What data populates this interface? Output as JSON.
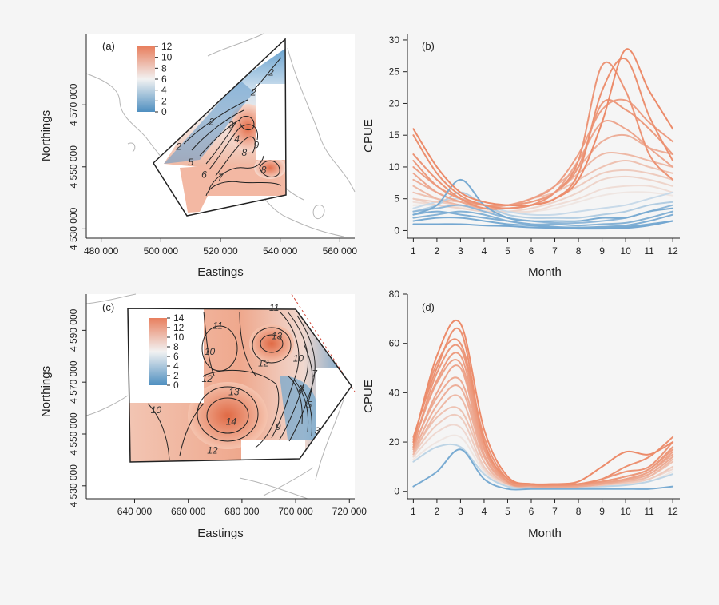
{
  "chart_data": [
    {
      "id": "a",
      "type": "heatmap",
      "panel_label": "(a)",
      "xlabel": "Eastings",
      "ylabel": "Northings",
      "xlim": [
        475000,
        565000
      ],
      "ylim": [
        4527000,
        4593000
      ],
      "xticks": [
        {
          "v": 480000,
          "label": "480 000"
        },
        {
          "v": 500000,
          "label": "500 000"
        },
        {
          "v": 520000,
          "label": "520 000"
        },
        {
          "v": 540000,
          "label": "540 000"
        },
        {
          "v": 560000,
          "label": "560 000"
        }
      ],
      "yticks": [
        {
          "v": 4530000,
          "label": "4 530 000"
        },
        {
          "v": 4550000,
          "label": "4 550 000"
        },
        {
          "v": 4570000,
          "label": "4 570 000"
        }
      ],
      "colorbar": {
        "min": 0,
        "max": 12,
        "ticks": [
          0,
          2,
          4,
          6,
          8,
          10,
          12
        ]
      },
      "colors": {
        "low": "#4f8fc0",
        "mid": "#f2f2f2",
        "high": "#e87f5e"
      },
      "contour_labels": [
        {
          "text": "2",
          "x": 506000,
          "y": 4555500
        },
        {
          "text": "2",
          "x": 517000,
          "y": 4563500
        },
        {
          "text": "3",
          "x": 523500,
          "y": 4562500
        },
        {
          "text": "4",
          "x": 525500,
          "y": 4558000
        },
        {
          "text": "5",
          "x": 510000,
          "y": 4550500
        },
        {
          "text": "6",
          "x": 514500,
          "y": 4546500
        },
        {
          "text": "7",
          "x": 520000,
          "y": 4545500
        },
        {
          "text": "8",
          "x": 528000,
          "y": 4553500
        },
        {
          "text": "9",
          "x": 532000,
          "y": 4556000
        },
        {
          "text": "8",
          "x": 534500,
          "y": 4548000
        },
        {
          "text": "2",
          "x": 531000,
          "y": 4573000
        },
        {
          "text": "2",
          "x": 537000,
          "y": 4579500
        }
      ]
    },
    {
      "id": "b",
      "type": "line",
      "panel_label": "(b)",
      "xlabel": "Month",
      "ylabel": "CPUE",
      "xlim": [
        0.75,
        12.3
      ],
      "ylim": [
        -1.2,
        31
      ],
      "xticks": [
        1,
        2,
        3,
        4,
        5,
        6,
        7,
        8,
        9,
        10,
        11,
        12
      ],
      "yticks": [
        0,
        5,
        10,
        15,
        20,
        25,
        30
      ],
      "x": [
        1,
        2,
        3,
        4,
        5,
        6,
        7,
        8,
        9,
        10,
        11,
        12
      ],
      "series": [
        {
          "values": [
            16,
            10,
            6,
            4.5,
            4,
            4,
            5,
            8,
            17,
            28.5,
            22,
            16
          ],
          "strength": 1.0
        },
        {
          "values": [
            15,
            9,
            5.5,
            4,
            3.5,
            4,
            5,
            9,
            22,
            27,
            18,
            11
          ],
          "strength": 0.95
        },
        {
          "values": [
            12,
            8,
            5,
            3.5,
            3.5,
            4,
            6,
            11,
            26,
            22,
            12,
            8
          ],
          "strength": 0.9
        },
        {
          "values": [
            11,
            7,
            5,
            4,
            4,
            4.5,
            6,
            10,
            20,
            19,
            16,
            12
          ],
          "strength": 0.85
        },
        {
          "values": [
            10,
            7,
            5,
            4,
            4,
            5,
            7,
            12,
            19,
            20.5,
            17,
            14
          ],
          "strength": 0.8
        },
        {
          "values": [
            9,
            6,
            4.5,
            3.5,
            3.5,
            4,
            6,
            11,
            17,
            16,
            13,
            10
          ],
          "strength": 0.7
        },
        {
          "values": [
            8,
            6,
            4.5,
            4,
            4,
            5,
            7,
            10,
            14,
            15,
            13,
            12
          ],
          "strength": 0.6
        },
        {
          "values": [
            7,
            5,
            4,
            3.5,
            4,
            4.5,
            6,
            9,
            12,
            12,
            11,
            10
          ],
          "strength": 0.5
        },
        {
          "values": [
            6,
            5,
            4.5,
            4,
            4,
            5,
            6,
            8,
            10,
            11,
            10,
            9
          ],
          "strength": 0.4
        },
        {
          "values": [
            5,
            4.5,
            4,
            3.5,
            3.5,
            4,
            5,
            7,
            9,
            9.5,
            9,
            8
          ],
          "strength": 0.3
        },
        {
          "values": [
            5,
            4,
            3.5,
            3,
            3,
            3.5,
            4.5,
            6,
            8,
            8.5,
            8,
            7
          ],
          "strength": 0.2
        },
        {
          "values": [
            4.5,
            4,
            3.5,
            3,
            3,
            3,
            4,
            5,
            6.5,
            7,
            7,
            6
          ],
          "strength": 0.1
        },
        {
          "values": [
            4,
            4,
            3.8,
            3.2,
            3,
            3,
            3.5,
            4.5,
            5.5,
            6,
            6,
            5.5
          ],
          "strength": 0.0
        },
        {
          "values": [
            3.5,
            4.5,
            5,
            4,
            3,
            2.5,
            2.5,
            3,
            3.5,
            4,
            5,
            6
          ],
          "strength": -0.2
        },
        {
          "values": [
            3,
            4,
            6,
            4,
            2.5,
            2,
            2,
            2,
            2.5,
            3,
            4,
            4.5
          ],
          "strength": -0.4
        },
        {
          "values": [
            2.5,
            4,
            8,
            4,
            2,
            1.5,
            1.5,
            1.5,
            2,
            2,
            3,
            3.5
          ],
          "strength": -0.9
        },
        {
          "values": [
            3,
            3.5,
            4,
            3,
            2,
            1.5,
            1.2,
            1.2,
            1.5,
            2,
            3,
            4
          ],
          "strength": -0.7
        },
        {
          "values": [
            2,
            2.5,
            3,
            2.5,
            1.5,
            1,
            1,
            0.8,
            1,
            1.2,
            2,
            3
          ],
          "strength": -0.8
        },
        {
          "values": [
            2.5,
            3,
            2.5,
            2,
            1.5,
            1,
            0.6,
            0.5,
            0.6,
            0.8,
            1.5,
            2.5
          ],
          "strength": -0.85
        },
        {
          "values": [
            1.5,
            2,
            2,
            1.5,
            1,
            0.8,
            0.5,
            0.4,
            0.5,
            0.6,
            1,
            1.5
          ],
          "strength": -0.9
        },
        {
          "values": [
            1,
            1,
            1,
            0.8,
            0.7,
            0.5,
            0.4,
            0.3,
            0.3,
            0.4,
            0.8,
            1.5
          ],
          "strength": -0.95
        }
      ]
    },
    {
      "id": "c",
      "type": "heatmap",
      "panel_label": "(c)",
      "xlabel": "Eastings",
      "ylabel": "Northings",
      "xlim": [
        622000,
        722000
      ],
      "ylim": [
        4525000,
        4604000
      ],
      "xticks": [
        {
          "v": 640000,
          "label": "640 000"
        },
        {
          "v": 660000,
          "label": "660 000"
        },
        {
          "v": 680000,
          "label": "680 000"
        },
        {
          "v": 700000,
          "label": "700 000"
        },
        {
          "v": 720000,
          "label": "720 000"
        }
      ],
      "yticks": [
        {
          "v": 4530000,
          "label": "4 530 000"
        },
        {
          "v": 4550000,
          "label": "4 550 000"
        },
        {
          "v": 4570000,
          "label": "4 570 000"
        },
        {
          "v": 4590000,
          "label": "4 590 000"
        }
      ],
      "colorbar": {
        "min": 0,
        "max": 14,
        "ticks": [
          0,
          2,
          4,
          6,
          8,
          10,
          12,
          14
        ]
      },
      "colors": {
        "low": "#4f8fc0",
        "mid": "#f2f2f2",
        "high": "#e87f5e"
      },
      "contour_labels": [
        {
          "text": "11",
          "x": 671000,
          "y": 4590500
        },
        {
          "text": "10",
          "x": 668000,
          "y": 4580500
        },
        {
          "text": "12",
          "x": 667000,
          "y": 4570000
        },
        {
          "text": "13",
          "x": 677000,
          "y": 4565000
        },
        {
          "text": "14",
          "x": 676000,
          "y": 4553500
        },
        {
          "text": "12",
          "x": 669000,
          "y": 4542500
        },
        {
          "text": "10",
          "x": 648000,
          "y": 4558000
        },
        {
          "text": "13",
          "x": 693000,
          "y": 4586500
        },
        {
          "text": "12",
          "x": 688000,
          "y": 4576000
        },
        {
          "text": "11",
          "x": 692000,
          "y": 4597500
        },
        {
          "text": "10",
          "x": 701000,
          "y": 4578000
        },
        {
          "text": "8",
          "x": 702000,
          "y": 4566000
        },
        {
          "text": "5",
          "x": 705000,
          "y": 4560000
        },
        {
          "text": "7",
          "x": 707000,
          "y": 4572000
        },
        {
          "text": "3",
          "x": 708000,
          "y": 4550000
        },
        {
          "text": "9",
          "x": 693500,
          "y": 4551500
        }
      ]
    },
    {
      "id": "d",
      "type": "line",
      "panel_label": "(d)",
      "xlabel": "Month",
      "ylabel": "CPUE",
      "xlim": [
        0.75,
        12.3
      ],
      "ylim": [
        -3,
        80
      ],
      "xticks": [
        1,
        2,
        3,
        4,
        5,
        6,
        7,
        8,
        9,
        10,
        11,
        12
      ],
      "yticks": [
        0,
        20,
        40,
        60,
        80
      ],
      "x": [
        1,
        2,
        3,
        4,
        5,
        6,
        7,
        8,
        9,
        10,
        11,
        12
      ],
      "series": [
        {
          "values": [
            20,
            55,
            68,
            25,
            6,
            3,
            3,
            4,
            10,
            16,
            15,
            20
          ],
          "strength": 1.0
        },
        {
          "values": [
            22,
            50,
            65,
            20,
            5,
            3,
            3,
            3,
            5,
            10,
            14,
            22
          ],
          "strength": 0.95
        },
        {
          "values": [
            21,
            52,
            60,
            22,
            5,
            3,
            2.5,
            3,
            5,
            8,
            10,
            20
          ],
          "strength": 0.9
        },
        {
          "values": [
            18,
            48,
            58,
            20,
            4,
            2.5,
            2.5,
            3,
            4,
            6,
            9,
            18
          ],
          "strength": 0.85
        },
        {
          "values": [
            19,
            45,
            55,
            18,
            4,
            2.5,
            2.5,
            2.5,
            4,
            6,
            9,
            17
          ],
          "strength": 0.8
        },
        {
          "values": [
            20,
            44,
            52,
            17,
            4,
            2.5,
            2,
            2.5,
            3.5,
            5,
            8,
            16
          ],
          "strength": 0.75
        },
        {
          "values": [
            17,
            40,
            50,
            15,
            4,
            2.5,
            2,
            2.5,
            3.5,
            5,
            8,
            15
          ],
          "strength": 0.7
        },
        {
          "values": [
            18,
            38,
            45,
            15,
            3.5,
            2,
            2,
            2,
            3,
            4.5,
            7,
            14
          ],
          "strength": 0.65
        },
        {
          "values": [
            16,
            35,
            42,
            14,
            3.5,
            2,
            2,
            2,
            3,
            4.5,
            7,
            14
          ],
          "strength": 0.6
        },
        {
          "values": [
            15,
            32,
            38,
            12,
            3,
            2,
            2,
            2,
            3,
            4,
            6,
            13
          ],
          "strength": 0.5
        },
        {
          "values": [
            16,
            30,
            33,
            12,
            3,
            2,
            2,
            2,
            2.5,
            4,
            6,
            12
          ],
          "strength": 0.4
        },
        {
          "values": [
            15,
            27,
            30,
            10,
            3,
            2,
            2,
            2,
            2.5,
            3.5,
            5,
            10
          ],
          "strength": 0.3
        },
        {
          "values": [
            14,
            24,
            26,
            9,
            2.5,
            2,
            2,
            2,
            2.5,
            3,
            5,
            9
          ],
          "strength": 0.15
        },
        {
          "values": [
            13,
            20,
            22,
            8,
            2.5,
            2,
            1.8,
            1.8,
            2,
            3,
            4,
            8
          ],
          "strength": 0.0
        },
        {
          "values": [
            12,
            18,
            18,
            7,
            2,
            1.8,
            1.8,
            1.8,
            2,
            2.5,
            4,
            7
          ],
          "strength": -0.3
        },
        {
          "values": [
            2,
            8,
            17,
            5,
            1,
            1,
            1,
            1,
            1,
            1,
            1,
            2
          ],
          "strength": -0.9
        }
      ]
    }
  ]
}
